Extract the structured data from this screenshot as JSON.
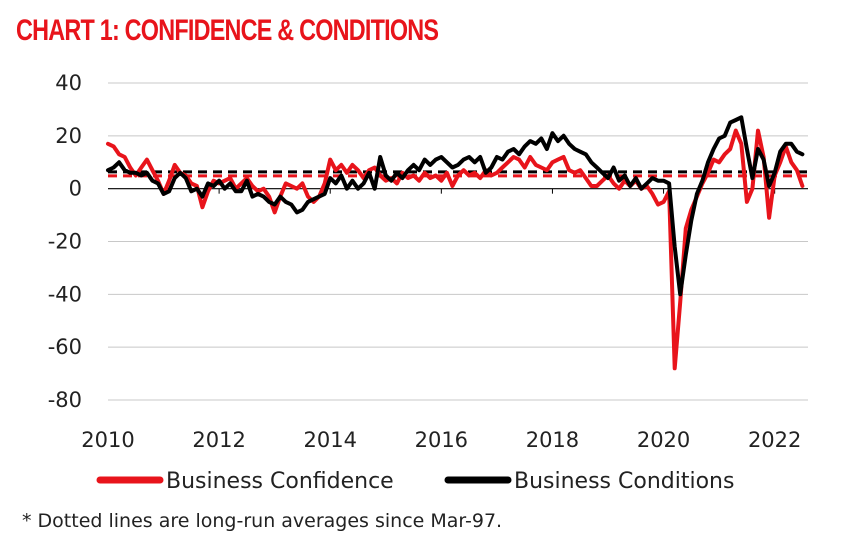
{
  "colors": {
    "title": "#e8141b",
    "confidence": "#e8141b",
    "conditions": "#000000",
    "grid": "#c8c8c8"
  },
  "chart_data": {
    "type": "line",
    "title": "CHART 1: CONFIDENCE & CONDITIONS",
    "xlabel": "",
    "ylabel": "",
    "xlim": [
      2010,
      2022.6
    ],
    "ylim": [
      -80,
      40
    ],
    "yticks": [
      "40",
      "20",
      "0",
      "-20",
      "-40",
      "-60",
      "-80"
    ],
    "ytick_values": [
      40,
      20,
      0,
      -20,
      -40,
      -60,
      -80
    ],
    "xticks": [
      "2010",
      "2012",
      "2014",
      "2016",
      "2018",
      "2020",
      "2022"
    ],
    "xtick_values": [
      2010,
      2012,
      2014,
      2016,
      2018,
      2020,
      2022
    ],
    "footnote": "* Dotted lines are long-run averages since Mar-97.",
    "series": [
      {
        "name": "Business Confidence",
        "color": "#e8141b",
        "average": 6,
        "points": [
          [
            2010.0,
            17
          ],
          [
            2010.1,
            16
          ],
          [
            2010.2,
            13
          ],
          [
            2010.3,
            12
          ],
          [
            2010.4,
            8
          ],
          [
            2010.5,
            5
          ],
          [
            2010.6,
            8
          ],
          [
            2010.7,
            11
          ],
          [
            2010.8,
            7
          ],
          [
            2010.9,
            3
          ],
          [
            2011.0,
            -2
          ],
          [
            2011.1,
            3
          ],
          [
            2011.2,
            9
          ],
          [
            2011.3,
            6
          ],
          [
            2011.4,
            5
          ],
          [
            2011.5,
            2
          ],
          [
            2011.6,
            1
          ],
          [
            2011.7,
            -7
          ],
          [
            2011.8,
            -1
          ],
          [
            2011.9,
            3
          ],
          [
            2012.0,
            2
          ],
          [
            2012.1,
            3
          ],
          [
            2012.2,
            4
          ],
          [
            2012.3,
            0
          ],
          [
            2012.4,
            2
          ],
          [
            2012.5,
            4
          ],
          [
            2012.6,
            1
          ],
          [
            2012.7,
            -1
          ],
          [
            2012.8,
            0
          ],
          [
            2012.9,
            -3
          ],
          [
            2013.0,
            -9
          ],
          [
            2013.1,
            -3
          ],
          [
            2013.2,
            2
          ],
          [
            2013.3,
            1
          ],
          [
            2013.4,
            0
          ],
          [
            2013.5,
            2
          ],
          [
            2013.6,
            -3
          ],
          [
            2013.7,
            -5
          ],
          [
            2013.8,
            -3
          ],
          [
            2013.9,
            2
          ],
          [
            2014.0,
            11
          ],
          [
            2014.1,
            7
          ],
          [
            2014.2,
            9
          ],
          [
            2014.3,
            6
          ],
          [
            2014.4,
            9
          ],
          [
            2014.5,
            7
          ],
          [
            2014.6,
            4
          ],
          [
            2014.7,
            7
          ],
          [
            2014.8,
            8
          ],
          [
            2014.9,
            5
          ],
          [
            2015.0,
            3
          ],
          [
            2015.1,
            4
          ],
          [
            2015.2,
            2
          ],
          [
            2015.3,
            6
          ],
          [
            2015.4,
            4
          ],
          [
            2015.5,
            5
          ],
          [
            2015.6,
            3
          ],
          [
            2015.7,
            6
          ],
          [
            2015.8,
            4
          ],
          [
            2015.9,
            5
          ],
          [
            2016.0,
            3
          ],
          [
            2016.1,
            6
          ],
          [
            2016.2,
            1
          ],
          [
            2016.3,
            5
          ],
          [
            2016.4,
            7
          ],
          [
            2016.5,
            5
          ],
          [
            2016.6,
            6
          ],
          [
            2016.7,
            4
          ],
          [
            2016.8,
            7
          ],
          [
            2016.9,
            5
          ],
          [
            2017.0,
            6
          ],
          [
            2017.1,
            8
          ],
          [
            2017.2,
            10
          ],
          [
            2017.3,
            12
          ],
          [
            2017.4,
            11
          ],
          [
            2017.5,
            8
          ],
          [
            2017.6,
            12
          ],
          [
            2017.7,
            9
          ],
          [
            2017.8,
            8
          ],
          [
            2017.9,
            7
          ],
          [
            2018.0,
            10
          ],
          [
            2018.1,
            11
          ],
          [
            2018.2,
            12
          ],
          [
            2018.3,
            7
          ],
          [
            2018.4,
            6
          ],
          [
            2018.5,
            7
          ],
          [
            2018.6,
            4
          ],
          [
            2018.7,
            1
          ],
          [
            2018.8,
            1
          ],
          [
            2018.9,
            3
          ],
          [
            2019.0,
            5
          ],
          [
            2019.1,
            2
          ],
          [
            2019.2,
            0
          ],
          [
            2019.3,
            3
          ],
          [
            2019.4,
            1
          ],
          [
            2019.5,
            3
          ],
          [
            2019.6,
            0
          ],
          [
            2019.7,
            1
          ],
          [
            2019.8,
            -2
          ],
          [
            2019.9,
            -6
          ],
          [
            2020.0,
            -5
          ],
          [
            2020.1,
            -1
          ],
          [
            2020.2,
            -68
          ],
          [
            2020.3,
            -43
          ],
          [
            2020.4,
            -15
          ],
          [
            2020.5,
            -8
          ],
          [
            2020.6,
            -3
          ],
          [
            2020.7,
            2
          ],
          [
            2020.8,
            6
          ],
          [
            2020.9,
            11
          ],
          [
            2021.0,
            10
          ],
          [
            2021.1,
            13
          ],
          [
            2021.2,
            15
          ],
          [
            2021.3,
            22
          ],
          [
            2021.4,
            17
          ],
          [
            2021.5,
            -5
          ],
          [
            2021.6,
            0
          ],
          [
            2021.7,
            22
          ],
          [
            2021.8,
            12
          ],
          [
            2021.9,
            -11
          ],
          [
            2022.0,
            5
          ],
          [
            2022.1,
            10
          ],
          [
            2022.2,
            16
          ],
          [
            2022.3,
            10
          ],
          [
            2022.4,
            7
          ],
          [
            2022.5,
            1
          ]
        ]
      },
      {
        "name": "Business Conditions",
        "color": "#000000",
        "average": 6,
        "points": [
          [
            2010.0,
            7
          ],
          [
            2010.1,
            8
          ],
          [
            2010.2,
            10
          ],
          [
            2010.3,
            7
          ],
          [
            2010.4,
            6
          ],
          [
            2010.5,
            6
          ],
          [
            2010.6,
            5
          ],
          [
            2010.7,
            6
          ],
          [
            2010.8,
            3
          ],
          [
            2010.9,
            2
          ],
          [
            2011.0,
            -2
          ],
          [
            2011.1,
            -1
          ],
          [
            2011.2,
            4
          ],
          [
            2011.3,
            6
          ],
          [
            2011.4,
            4
          ],
          [
            2011.5,
            -1
          ],
          [
            2011.6,
            0
          ],
          [
            2011.7,
            -3
          ],
          [
            2011.8,
            2
          ],
          [
            2011.9,
            1
          ],
          [
            2012.0,
            3
          ],
          [
            2012.1,
            0
          ],
          [
            2012.2,
            2
          ],
          [
            2012.3,
            -1
          ],
          [
            2012.4,
            -1
          ],
          [
            2012.5,
            3
          ],
          [
            2012.6,
            -3
          ],
          [
            2012.7,
            -2
          ],
          [
            2012.8,
            -3
          ],
          [
            2012.9,
            -5
          ],
          [
            2013.0,
            -6
          ],
          [
            2013.1,
            -3
          ],
          [
            2013.2,
            -5
          ],
          [
            2013.3,
            -6
          ],
          [
            2013.4,
            -9
          ],
          [
            2013.5,
            -8
          ],
          [
            2013.6,
            -5
          ],
          [
            2013.7,
            -4
          ],
          [
            2013.8,
            -3
          ],
          [
            2013.9,
            -2
          ],
          [
            2014.0,
            4
          ],
          [
            2014.1,
            2
          ],
          [
            2014.2,
            5
          ],
          [
            2014.3,
            0
          ],
          [
            2014.4,
            3
          ],
          [
            2014.5,
            0
          ],
          [
            2014.6,
            2
          ],
          [
            2014.7,
            6
          ],
          [
            2014.8,
            0
          ],
          [
            2014.9,
            12
          ],
          [
            2015.0,
            5
          ],
          [
            2015.1,
            3
          ],
          [
            2015.2,
            6
          ],
          [
            2015.3,
            4
          ],
          [
            2015.4,
            7
          ],
          [
            2015.5,
            9
          ],
          [
            2015.6,
            7
          ],
          [
            2015.7,
            11
          ],
          [
            2015.8,
            9
          ],
          [
            2015.9,
            11
          ],
          [
            2016.0,
            12
          ],
          [
            2016.1,
            10
          ],
          [
            2016.2,
            8
          ],
          [
            2016.3,
            9
          ],
          [
            2016.4,
            11
          ],
          [
            2016.5,
            12
          ],
          [
            2016.6,
            10
          ],
          [
            2016.7,
            12
          ],
          [
            2016.8,
            6
          ],
          [
            2016.9,
            8
          ],
          [
            2017.0,
            12
          ],
          [
            2017.1,
            11
          ],
          [
            2017.2,
            14
          ],
          [
            2017.3,
            15
          ],
          [
            2017.4,
            13
          ],
          [
            2017.5,
            16
          ],
          [
            2017.6,
            18
          ],
          [
            2017.7,
            17
          ],
          [
            2017.8,
            19
          ],
          [
            2017.9,
            15
          ],
          [
            2018.0,
            21
          ],
          [
            2018.1,
            18
          ],
          [
            2018.2,
            20
          ],
          [
            2018.3,
            17
          ],
          [
            2018.4,
            15
          ],
          [
            2018.5,
            14
          ],
          [
            2018.6,
            13
          ],
          [
            2018.7,
            10
          ],
          [
            2018.8,
            8
          ],
          [
            2018.9,
            6
          ],
          [
            2019.0,
            4
          ],
          [
            2019.1,
            8
          ],
          [
            2019.2,
            3
          ],
          [
            2019.3,
            5
          ],
          [
            2019.4,
            1
          ],
          [
            2019.5,
            4
          ],
          [
            2019.6,
            0
          ],
          [
            2019.7,
            2
          ],
          [
            2019.8,
            4
          ],
          [
            2019.9,
            3
          ],
          [
            2020.0,
            3
          ],
          [
            2020.1,
            2
          ],
          [
            2020.2,
            -22
          ],
          [
            2020.3,
            -40
          ],
          [
            2020.4,
            -25
          ],
          [
            2020.5,
            -12
          ],
          [
            2020.6,
            -2
          ],
          [
            2020.7,
            3
          ],
          [
            2020.8,
            10
          ],
          [
            2020.9,
            15
          ],
          [
            2021.0,
            19
          ],
          [
            2021.1,
            20
          ],
          [
            2021.2,
            25
          ],
          [
            2021.3,
            26
          ],
          [
            2021.4,
            27
          ],
          [
            2021.5,
            15
          ],
          [
            2021.6,
            4
          ],
          [
            2021.7,
            15
          ],
          [
            2021.8,
            11
          ],
          [
            2021.9,
            1
          ],
          [
            2022.0,
            6
          ],
          [
            2022.1,
            14
          ],
          [
            2022.2,
            17
          ],
          [
            2022.3,
            17
          ],
          [
            2022.4,
            14
          ],
          [
            2022.5,
            13
          ]
        ]
      }
    ]
  }
}
